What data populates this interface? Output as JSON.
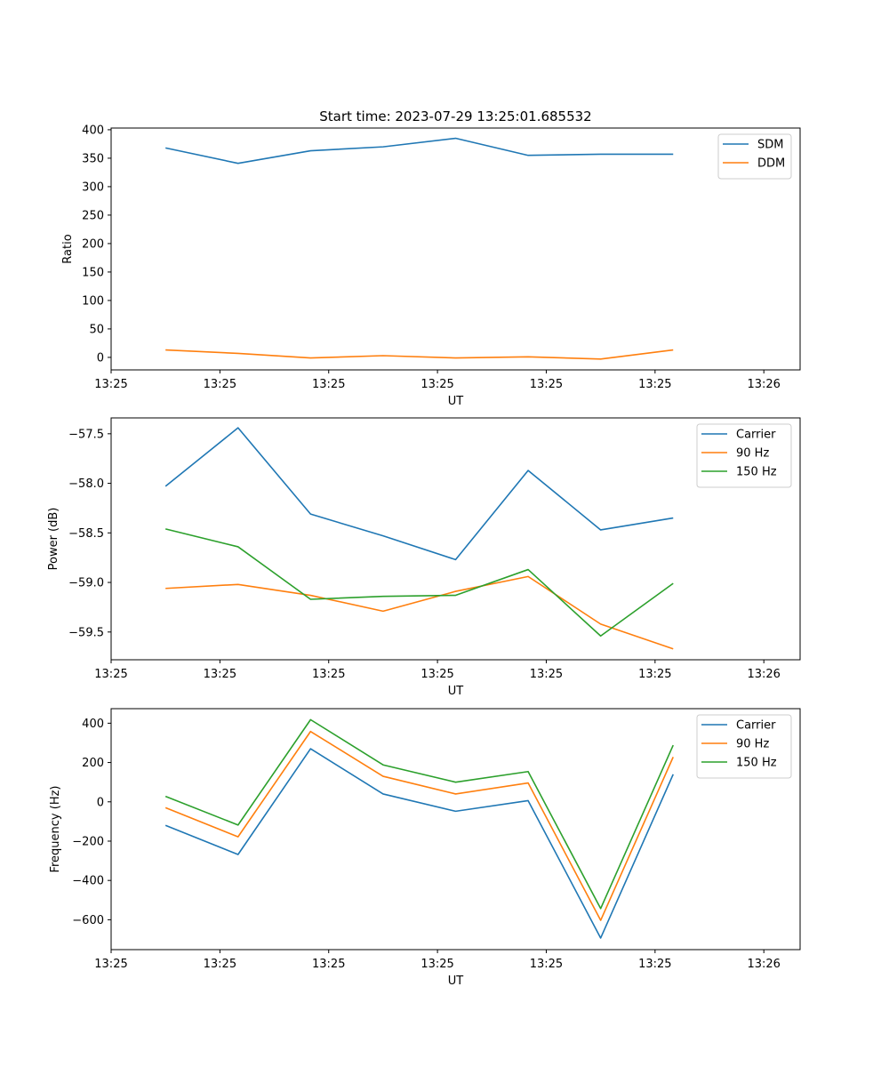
{
  "title": "Start time: 2023-07-29 13:25:01.685532",
  "chart_data": [
    {
      "type": "line",
      "title": "Start time: 2023-07-29 13:25:01.685532",
      "xlabel": "UT",
      "ylabel": "Ratio",
      "xlim": [
        -0.75,
        8.75
      ],
      "x": [
        0,
        1,
        2,
        3,
        4,
        5,
        6,
        7
      ],
      "x_ticks": [
        -0.75,
        0.75,
        2.25,
        3.75,
        5.25,
        6.75,
        8.25
      ],
      "x_tick_labels": [
        "13:25",
        "13:25",
        "13:25",
        "13:25",
        "13:25",
        "13:25",
        "13:26"
      ],
      "ylim": [
        -22,
        403
      ],
      "y_ticks": [
        0,
        50,
        100,
        150,
        200,
        250,
        300,
        350,
        400
      ],
      "y_tick_labels": [
        "0",
        "50",
        "100",
        "150",
        "200",
        "250",
        "300",
        "350",
        "400"
      ],
      "legend": "top-right",
      "series": [
        {
          "name": "SDM",
          "color": "#1f77b4",
          "values": [
            368,
            341,
            363,
            370,
            385,
            355,
            357,
            357
          ]
        },
        {
          "name": "DDM",
          "color": "#ff7f0e",
          "values": [
            13,
            7,
            -1,
            3,
            -1,
            1,
            -3,
            13
          ]
        }
      ]
    },
    {
      "type": "line",
      "xlabel": "UT",
      "ylabel": "Power (dB)",
      "xlim": [
        -0.75,
        8.75
      ],
      "x": [
        0,
        1,
        2,
        3,
        4,
        5,
        6,
        7
      ],
      "x_ticks": [
        -0.75,
        0.75,
        2.25,
        3.75,
        5.25,
        6.75,
        8.25
      ],
      "x_tick_labels": [
        "13:25",
        "13:25",
        "13:25",
        "13:25",
        "13:25",
        "13:25",
        "13:26"
      ],
      "ylim": [
        -59.78,
        -57.34
      ],
      "y_ticks": [
        -57.5,
        -58.0,
        -58.5,
        -59.0,
        -59.5
      ],
      "y_tick_labels": [
        "−57.5",
        "−58.0",
        "−58.5",
        "−59.0",
        "−59.5"
      ],
      "legend": "top-right",
      "series": [
        {
          "name": "Carrier",
          "color": "#1f77b4",
          "values": [
            -58.03,
            -57.44,
            -58.31,
            -58.53,
            -58.77,
            -57.87,
            -58.47,
            -58.35
          ]
        },
        {
          "name": "90 Hz",
          "color": "#ff7f0e",
          "values": [
            -59.06,
            -59.02,
            -59.13,
            -59.29,
            -59.09,
            -58.94,
            -59.42,
            -59.67
          ]
        },
        {
          "name": "150 Hz",
          "color": "#2ca02c",
          "values": [
            -58.46,
            -58.64,
            -59.17,
            -59.14,
            -59.13,
            -58.87,
            -59.54,
            -59.01
          ]
        }
      ]
    },
    {
      "type": "line",
      "xlabel": "UT",
      "ylabel": "Frequency (Hz)",
      "xlim": [
        -0.75,
        8.75
      ],
      "x": [
        0,
        1,
        2,
        3,
        4,
        5,
        6,
        7
      ],
      "x_ticks": [
        -0.75,
        0.75,
        2.25,
        3.75,
        5.25,
        6.75,
        8.25
      ],
      "x_tick_labels": [
        "13:25",
        "13:25",
        "13:25",
        "13:25",
        "13:25",
        "13:25",
        "13:26"
      ],
      "ylim": [
        -752,
        474
      ],
      "y_ticks": [
        400,
        200,
        0,
        -200,
        -400,
        -600
      ],
      "y_tick_labels": [
        "400",
        "200",
        "0",
        "−200",
        "−400",
        "−600"
      ],
      "legend": "top-right",
      "series": [
        {
          "name": "Carrier",
          "color": "#1f77b4",
          "values": [
            -120,
            -268,
            270,
            40,
            -48,
            6,
            -693,
            140
          ]
        },
        {
          "name": "90 Hz",
          "color": "#ff7f0e",
          "values": [
            -30,
            -178,
            358,
            130,
            40,
            96,
            -603,
            228
          ]
        },
        {
          "name": "150 Hz",
          "color": "#2ca02c",
          "values": [
            28,
            -118,
            418,
            188,
            100,
            154,
            -543,
            288
          ]
        }
      ]
    }
  ]
}
